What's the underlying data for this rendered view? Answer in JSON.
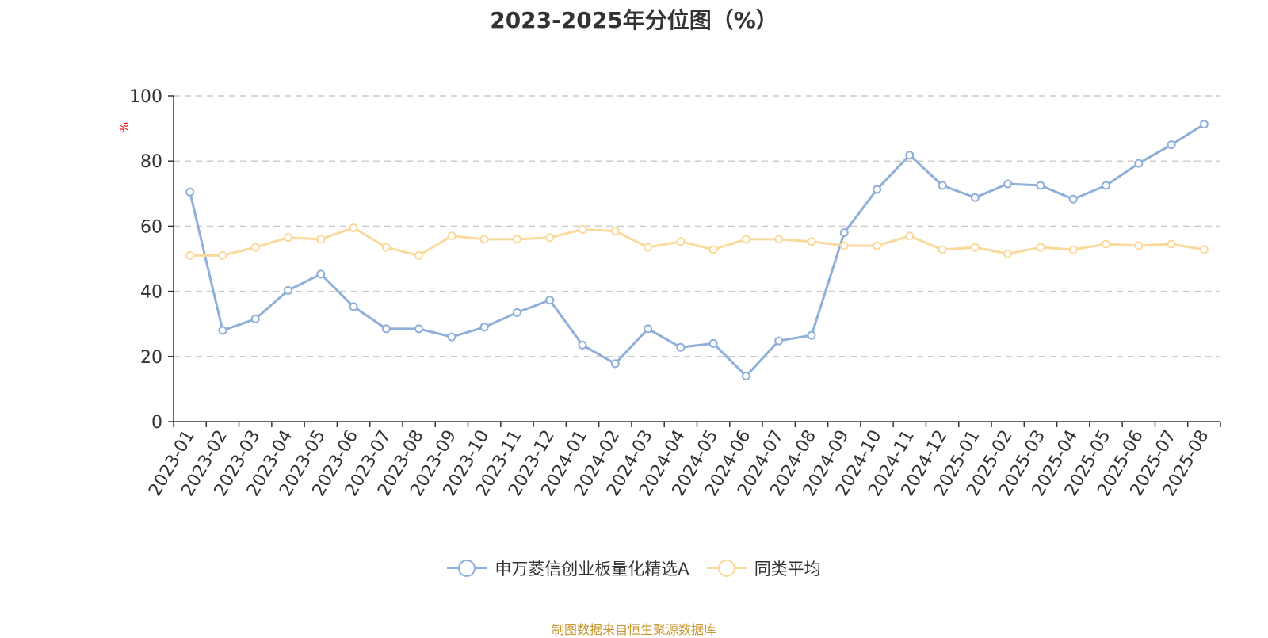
{
  "chart_data": {
    "type": "line",
    "title": "2023-2025年分位图（%）",
    "ylabel": "%",
    "xlabel": "",
    "ylim": [
      0,
      100
    ],
    "yticks": [
      0,
      20,
      40,
      60,
      80,
      100
    ],
    "grid": true,
    "legend_position": "bottom",
    "categories": [
      "2023-01",
      "2023-02",
      "2023-03",
      "2023-04",
      "2023-05",
      "2023-06",
      "2023-07",
      "2023-08",
      "2023-09",
      "2023-10",
      "2023-11",
      "2023-12",
      "2024-01",
      "2024-02",
      "2024-03",
      "2024-04",
      "2024-05",
      "2024-06",
      "2024-07",
      "2024-08",
      "2024-09",
      "2024-10",
      "2024-11",
      "2024-12",
      "2025-01",
      "2025-02",
      "2025-03",
      "2025-04",
      "2025-05",
      "2025-06",
      "2025-07",
      "2025-08"
    ],
    "series": [
      {
        "name": "申万菱信创业板量化精选A",
        "color": "#8eafd9",
        "values": [
          70.5,
          28,
          31.5,
          40.3,
          45.3,
          35.3,
          28.5,
          28.5,
          26,
          29,
          33.5,
          37.3,
          23.5,
          17.8,
          28.5,
          22.8,
          24,
          14,
          24.8,
          26.5,
          58,
          71.3,
          81.8,
          72.5,
          68.8,
          73,
          72.5,
          68.3,
          72.5,
          79.3,
          85,
          91.3
        ]
      },
      {
        "name": "同类平均",
        "color": "#fbd99a",
        "values": [
          51,
          51,
          53.5,
          56.5,
          56,
          59.5,
          53.5,
          51,
          57,
          56,
          56,
          56.5,
          59,
          58.5,
          53.5,
          55.3,
          52.8,
          56,
          56,
          55.3,
          54,
          54,
          57,
          52.8,
          53.5,
          51.5,
          53.5,
          52.8,
          54.5,
          54,
          54.5,
          52.8
        ]
      }
    ]
  },
  "footer": {
    "text": "制图数据来自恒生聚源数据库",
    "color": "#c8962e"
  }
}
